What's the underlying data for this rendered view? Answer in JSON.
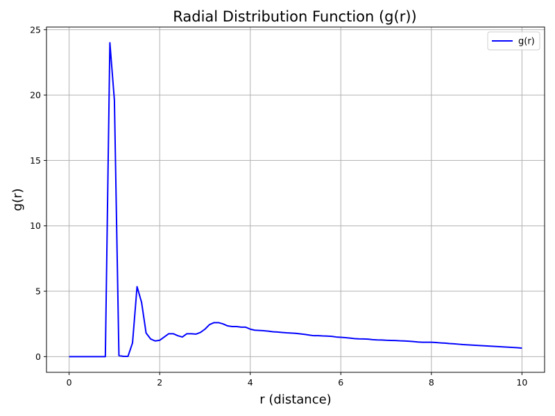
{
  "chart_data": {
    "type": "line",
    "title": "Radial Distribution Function (g(r))",
    "xlabel": "r (distance)",
    "ylabel": "g(r)",
    "xlim": [
      -0.5,
      10.5
    ],
    "ylim": [
      -1.2,
      25.2
    ],
    "xticks": [
      0,
      2,
      4,
      6,
      8,
      10
    ],
    "yticks": [
      0,
      5,
      10,
      15,
      20,
      25
    ],
    "grid": true,
    "legend_position": "top-right",
    "series": [
      {
        "name": "g(r)",
        "color": "#0000ff",
        "x": [
          0,
          0.1,
          0.2,
          0.3,
          0.4,
          0.5,
          0.6,
          0.7,
          0.8,
          0.9,
          1.0,
          1.1,
          1.2,
          1.3,
          1.4,
          1.5,
          1.6,
          1.7,
          1.8,
          1.9,
          2.0,
          2.1,
          2.2,
          2.3,
          2.4,
          2.5,
          2.6,
          2.7,
          2.8,
          2.9,
          3.0,
          3.1,
          3.2,
          3.3,
          3.4,
          3.5,
          3.6,
          3.7,
          3.8,
          3.9,
          4.0,
          4.1,
          4.2,
          4.3,
          4.4,
          4.5,
          4.6,
          4.7,
          4.8,
          4.9,
          5.0,
          5.1,
          5.2,
          5.3,
          5.4,
          5.5,
          5.6,
          5.7,
          5.8,
          5.9,
          6.0,
          6.1,
          6.2,
          6.3,
          6.4,
          6.5,
          6.6,
          6.7,
          6.8,
          6.9,
          7.0,
          7.1,
          7.2,
          7.3,
          7.4,
          7.5,
          7.6,
          7.7,
          7.8,
          7.9,
          8.0,
          8.1,
          8.2,
          8.3,
          8.4,
          8.5,
          8.6,
          8.7,
          8.8,
          8.9,
          9.0,
          9.1,
          9.2,
          9.3,
          9.4,
          9.5,
          9.6,
          9.7,
          9.8,
          9.9,
          10.0
        ],
        "y": [
          0,
          0,
          0,
          0,
          0,
          0,
          0,
          0,
          0,
          24.0,
          19.6,
          0.08,
          0.02,
          0.02,
          1.05,
          5.35,
          4.15,
          1.8,
          1.35,
          1.2,
          1.25,
          1.5,
          1.75,
          1.75,
          1.6,
          1.5,
          1.75,
          1.75,
          1.72,
          1.85,
          2.1,
          2.45,
          2.6,
          2.6,
          2.5,
          2.35,
          2.3,
          2.3,
          2.25,
          2.25,
          2.1,
          2.02,
          2.0,
          1.98,
          1.95,
          1.9,
          1.88,
          1.85,
          1.82,
          1.8,
          1.78,
          1.74,
          1.7,
          1.65,
          1.6,
          1.6,
          1.58,
          1.57,
          1.55,
          1.5,
          1.48,
          1.45,
          1.42,
          1.38,
          1.36,
          1.35,
          1.34,
          1.3,
          1.28,
          1.27,
          1.25,
          1.24,
          1.23,
          1.21,
          1.2,
          1.18,
          1.15,
          1.12,
          1.1,
          1.1,
          1.1,
          1.08,
          1.05,
          1.03,
          1.0,
          0.98,
          0.95,
          0.92,
          0.9,
          0.88,
          0.86,
          0.84,
          0.82,
          0.8,
          0.78,
          0.76,
          0.74,
          0.72,
          0.7,
          0.68,
          0.65
        ]
      }
    ]
  }
}
